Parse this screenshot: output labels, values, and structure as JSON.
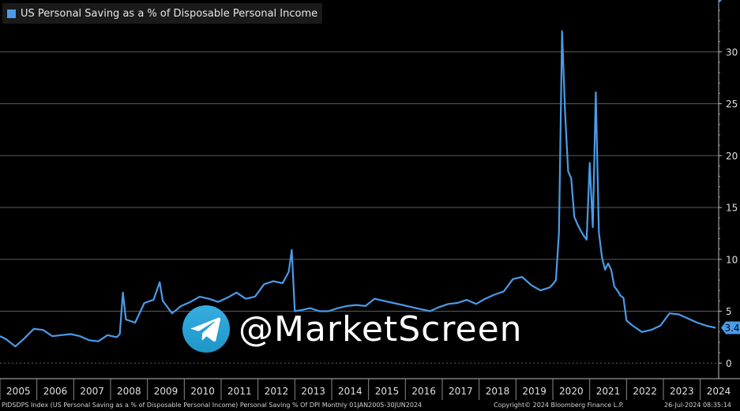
{
  "legend": {
    "label": "US Personal Saving as a % of Disposable Personal Income",
    "color": "#4a9be8"
  },
  "watermark": {
    "text": "@MarketScreen",
    "icon": "telegram-icon"
  },
  "footer": {
    "left": "PIDSDPS Index (US Personal Saving as a % of Disposable Personal Income) Personal Saving % Of DPI  Monthly 01JAN2005-30JUN2024",
    "mid": "Copyright© 2024 Bloomberg Finance L.P.",
    "right": "26-Jul-2024 08:35:14"
  },
  "chart_data": {
    "type": "line",
    "title": "",
    "xlabel": "",
    "ylabel": "",
    "ylim": [
      -1.5,
      35
    ],
    "yticks": [
      0,
      5,
      10,
      15,
      20,
      25,
      30
    ],
    "xlim": [
      "2005-01",
      "2024-07"
    ],
    "xtick_labels": [
      "2005",
      "2006",
      "2007",
      "2008",
      "2009",
      "2010",
      "2011",
      "2012",
      "2013",
      "2014",
      "2015",
      "2016",
      "2017",
      "2018",
      "2019",
      "2020",
      "2021",
      "2022",
      "2023",
      "2024"
    ],
    "grid": "horizontal",
    "axis_side": "right",
    "last_value_label": "3.4",
    "series": [
      {
        "name": "US Personal Saving as a % of Disposable Personal Income",
        "color": "#4a9be8",
        "x": [
          "2005-01",
          "2005-03",
          "2005-06",
          "2005-09",
          "2005-12",
          "2006-03",
          "2006-06",
          "2006-09",
          "2006-12",
          "2007-03",
          "2007-06",
          "2007-09",
          "2007-12",
          "2008-03",
          "2008-04",
          "2008-05",
          "2008-06",
          "2008-09",
          "2008-12",
          "2009-03",
          "2009-05",
          "2009-06",
          "2009-09",
          "2009-12",
          "2010-03",
          "2010-06",
          "2010-09",
          "2010-12",
          "2011-03",
          "2011-06",
          "2011-09",
          "2011-12",
          "2012-03",
          "2012-06",
          "2012-09",
          "2012-11",
          "2012-12",
          "2013-01",
          "2013-03",
          "2013-06",
          "2013-09",
          "2013-12",
          "2014-03",
          "2014-06",
          "2014-09",
          "2014-12",
          "2015-03",
          "2015-06",
          "2015-09",
          "2015-12",
          "2016-03",
          "2016-06",
          "2016-09",
          "2016-12",
          "2017-03",
          "2017-06",
          "2017-09",
          "2017-12",
          "2018-03",
          "2018-06",
          "2018-09",
          "2018-12",
          "2019-03",
          "2019-06",
          "2019-09",
          "2019-12",
          "2020-01",
          "2020-02",
          "2020-03",
          "2020-04",
          "2020-05",
          "2020-06",
          "2020-07",
          "2020-08",
          "2020-09",
          "2020-10",
          "2020-11",
          "2020-12",
          "2021-01",
          "2021-02",
          "2021-03",
          "2021-04",
          "2021-05",
          "2021-06",
          "2021-07",
          "2021-08",
          "2021-09",
          "2021-10",
          "2021-11",
          "2021-12",
          "2022-01",
          "2022-03",
          "2022-06",
          "2022-09",
          "2022-12",
          "2023-03",
          "2023-06",
          "2023-09",
          "2023-12",
          "2024-03",
          "2024-06"
        ],
        "values": [
          2.6,
          2.3,
          1.6,
          2.4,
          3.3,
          3.2,
          2.6,
          2.7,
          2.8,
          2.6,
          2.2,
          2.1,
          2.7,
          2.5,
          2.8,
          6.8,
          4.2,
          3.9,
          5.8,
          6.1,
          7.8,
          6.0,
          4.8,
          5.5,
          5.9,
          6.4,
          6.2,
          5.9,
          6.3,
          6.8,
          6.2,
          6.4,
          7.6,
          7.9,
          7.7,
          8.8,
          10.9,
          5.0,
          5.1,
          5.3,
          5.0,
          5.0,
          5.3,
          5.5,
          5.6,
          5.5,
          6.2,
          6.0,
          5.8,
          5.6,
          5.4,
          5.2,
          5.0,
          5.4,
          5.7,
          5.8,
          6.1,
          5.7,
          6.2,
          6.6,
          6.9,
          8.1,
          8.3,
          7.5,
          7.0,
          7.3,
          7.6,
          8.0,
          12.6,
          32.0,
          24.0,
          18.5,
          17.8,
          14.1,
          13.4,
          12.8,
          12.3,
          11.9,
          19.3,
          13.1,
          26.1,
          12.6,
          10.2,
          9.0,
          9.6,
          9.0,
          7.4,
          7.0,
          6.5,
          6.3,
          4.1,
          3.6,
          3.0,
          3.2,
          3.6,
          4.8,
          4.7,
          4.3,
          3.9,
          3.6,
          3.4
        ]
      }
    ]
  }
}
